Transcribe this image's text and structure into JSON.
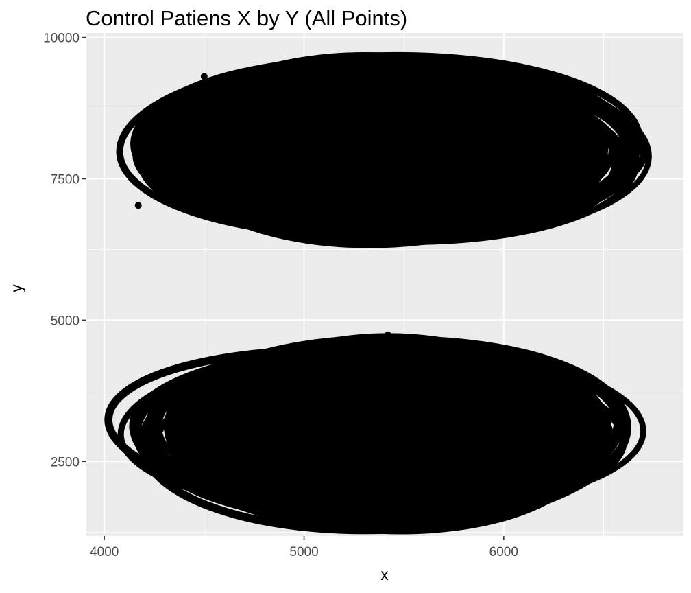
{
  "chart_data": {
    "type": "scatter",
    "title": "Control Patiens X by Y (All Points)",
    "xlabel": "x",
    "ylabel": "y",
    "xlim": [
      3910,
      6900
    ],
    "ylim": [
      1180,
      10080
    ],
    "x_ticks": [
      4000,
      5000,
      6000
    ],
    "y_ticks": [
      2500,
      5000,
      7500,
      10000
    ],
    "x_tick_labels": [
      "4000",
      "5000",
      "6000"
    ],
    "y_tick_labels": [
      "2500",
      "5000",
      "7500",
      "10000"
    ],
    "grid": true,
    "legend": "none",
    "colors": {
      "panel": "#ebebeb",
      "grid": "#ffffff",
      "points": "#000000",
      "tick_text": "#4d4d4d",
      "tick_mark": "#333333"
    },
    "clusters": [
      {
        "name": "",
        "x_range": [
          4040,
          6780
        ],
        "y_range": [
          6330,
          9600
        ],
        "center": [
          5410,
          7990
        ]
      },
      {
        "name": "",
        "x_range": [
          4030,
          6720
        ],
        "y_range": [
          1400,
          4760
        ],
        "center": [
          5380,
          3000
        ]
      }
    ],
    "isolated_points": [
      {
        "x": 4170,
        "y": 7030
      },
      {
        "x": 4500,
        "y": 9310
      },
      {
        "x": 6230,
        "y": 9090
      },
      {
        "x": 6100,
        "y": 9110
      },
      {
        "x": 5420,
        "y": 4740
      },
      {
        "x": 6520,
        "y": 2810
      }
    ]
  }
}
